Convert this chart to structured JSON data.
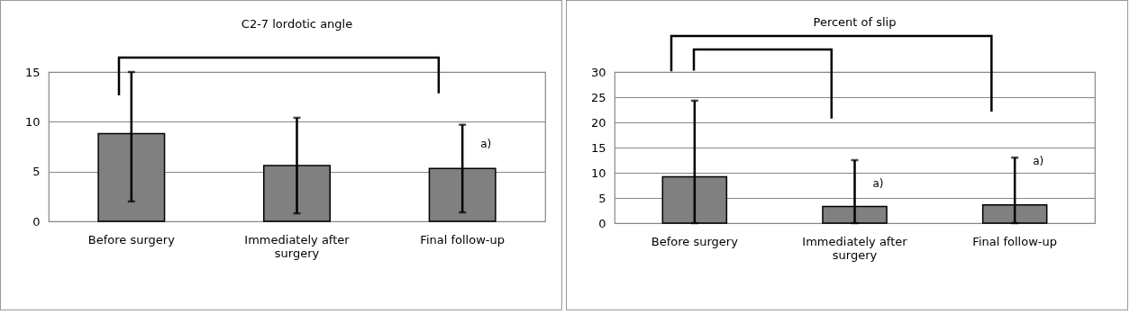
{
  "chart_data": [
    {
      "type": "bar",
      "title": "C2-7 lordotic angle",
      "categories": [
        "Before surgery",
        "Immediately after surgery",
        "Final follow-up"
      ],
      "values": [
        8.8,
        5.6,
        5.3
      ],
      "color": "#808080",
      "errors": [
        [
          2.0,
          15
        ],
        [
          0.8,
          10.4
        ],
        [
          0.9,
          9.7
        ]
      ],
      "ylim": [
        0,
        15
      ],
      "yticks": [
        0,
        5,
        10,
        15
      ],
      "grid": "y",
      "annotations": [
        {
          "text": "a)",
          "x": "Final follow-up",
          "y": 7.8
        }
      ]
    },
    {
      "type": "bar",
      "title": "Percent of slip",
      "categories": [
        "Before surgery",
        "Immediately after surgery",
        "Final follow-up"
      ],
      "values": [
        9.2,
        3.3,
        3.6
      ],
      "color": "#808080",
      "errors": [
        [
          0,
          24.3
        ],
        [
          0,
          12.5
        ],
        [
          0,
          13.0
        ]
      ],
      "ylim": [
        0,
        30
      ],
      "yticks": [
        0,
        5,
        10,
        15,
        20,
        25,
        30
      ],
      "grid": "y",
      "annotations": [
        {
          "text": "a)",
          "x": "Immediately after surgery",
          "y": 7.8
        },
        {
          "text": "a)",
          "x": "Final follow-up",
          "y": 12.3
        }
      ]
    }
  ]
}
